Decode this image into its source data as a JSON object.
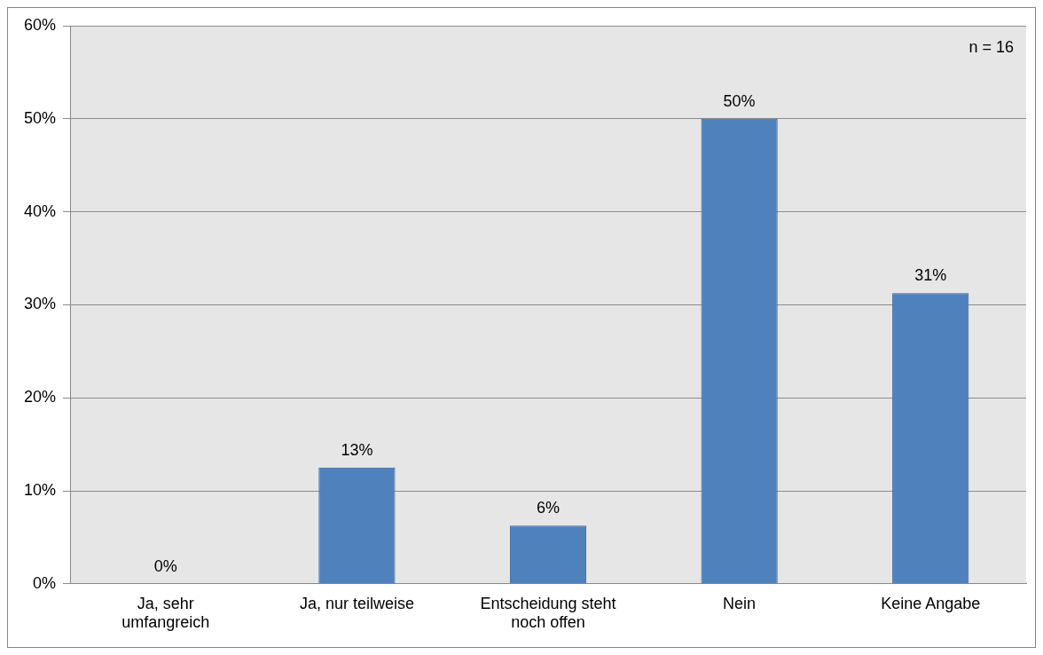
{
  "chart_data": {
    "type": "bar",
    "categories": [
      "Ja, sehr umfangreich",
      "Ja, nur teilweise",
      "Entscheidung steht noch offen",
      "Nein",
      "Keine Angabe"
    ],
    "values": [
      0,
      12.5,
      6.25,
      50,
      31.25
    ],
    "value_labels": [
      "0%",
      "13%",
      "6%",
      "50%",
      "31%"
    ],
    "color": "#4f81bd",
    "ylim": [
      0,
      60
    ],
    "yticks": [
      {
        "value": 0,
        "label": "0%"
      },
      {
        "value": 10,
        "label": "10%"
      },
      {
        "value": 20,
        "label": "20%"
      },
      {
        "value": 30,
        "label": "30%"
      },
      {
        "value": 40,
        "label": "40%"
      },
      {
        "value": 50,
        "label": "50%"
      },
      {
        "value": 60,
        "label": "60%"
      }
    ],
    "grid": "y",
    "legend": false,
    "annotations": [
      "n = 16"
    ]
  }
}
